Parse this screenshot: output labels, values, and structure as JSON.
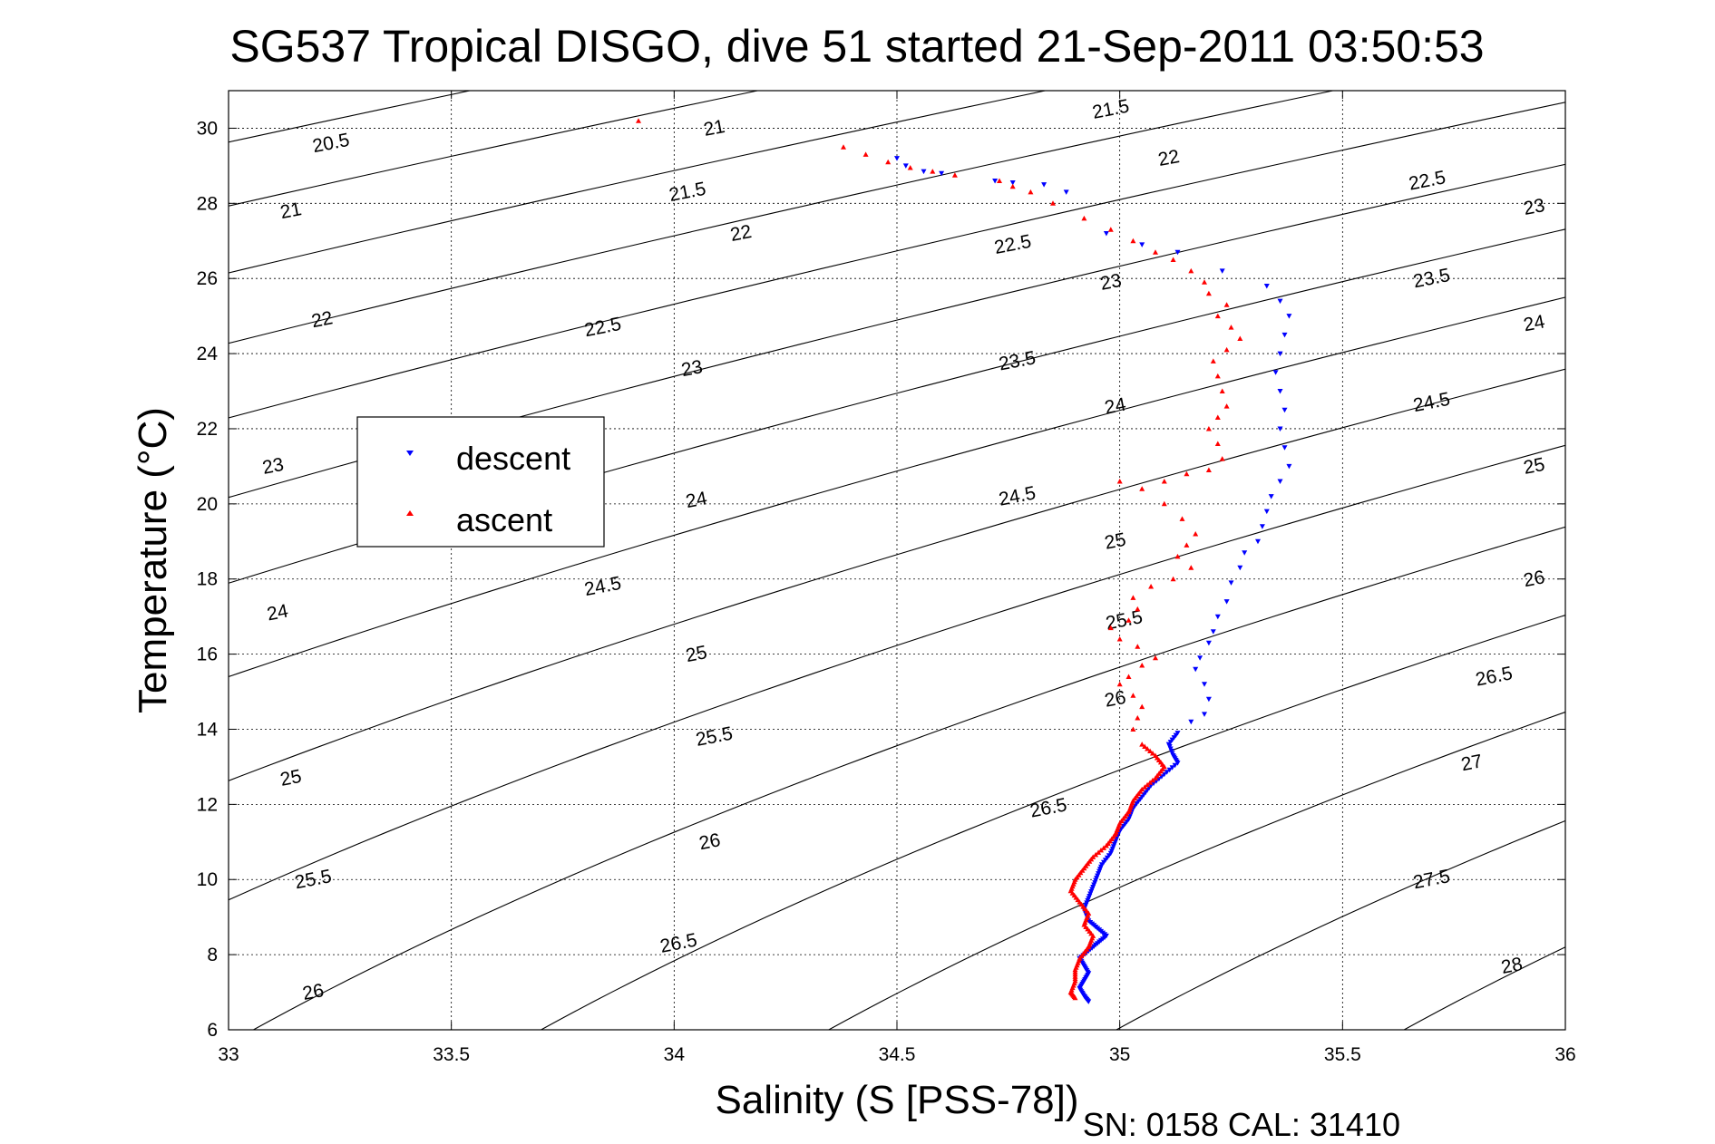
{
  "chart_data": {
    "type": "scatter",
    "title": "SG537 Tropical DISGO, dive 51 started 21-Sep-2011 03:50:53",
    "xlabel": "Salinity (S [PSS-78])",
    "ylabel": "Temperature (°C)",
    "footer": "SN: 0158  CAL: 31410",
    "xlim": [
      33,
      36
    ],
    "ylim": [
      6,
      31
    ],
    "xticks": [
      33,
      33.5,
      34,
      34.5,
      35,
      35.5,
      36
    ],
    "xtick_labels": [
      "33",
      "33.5",
      "34",
      "34.5",
      "35",
      "35.5",
      "36"
    ],
    "yticks": [
      6,
      8,
      10,
      12,
      14,
      16,
      18,
      20,
      22,
      24,
      26,
      28,
      30
    ],
    "ytick_labels": [
      "6",
      "8",
      "10",
      "12",
      "14",
      "16",
      "18",
      "20",
      "22",
      "24",
      "26",
      "28",
      "30"
    ],
    "grid": true,
    "legend_position": "center-left",
    "legend": [
      {
        "label": "descent",
        "color": "#0000ff",
        "marker": "triangle-down"
      },
      {
        "label": "ascent",
        "color": "#ff0000",
        "marker": "triangle-up"
      }
    ],
    "density_contours": {
      "color": "#000000",
      "levels": [
        20.5,
        21,
        21.5,
        22,
        22.5,
        23,
        23.5,
        24,
        24.5,
        25,
        25.5,
        26,
        26.5,
        27,
        27.5,
        28
      ],
      "level_labels": [
        "20.5",
        "21",
        "21.5",
        "22",
        "22.5",
        "23",
        "23.5",
        "24",
        "24.5",
        "25",
        "25.5",
        "26",
        "26.5",
        "27",
        "27.5",
        "28"
      ],
      "labels": [
        {
          "text": "20.5",
          "s": 33.23,
          "t": 29.6
        },
        {
          "text": "21",
          "s": 33.14,
          "t": 27.8
        },
        {
          "text": "22",
          "s": 33.21,
          "t": 24.9
        },
        {
          "text": "23",
          "s": 33.1,
          "t": 21.0
        },
        {
          "text": "24",
          "s": 33.11,
          "t": 17.1
        },
        {
          "text": "25",
          "s": 33.14,
          "t": 12.7
        },
        {
          "text": "25.5",
          "s": 33.19,
          "t": 10.0
        },
        {
          "text": "26",
          "s": 33.19,
          "t": 7.0
        },
        {
          "text": "21",
          "s": 34.09,
          "t": 30.0
        },
        {
          "text": "21.5",
          "s": 34.03,
          "t": 28.3
        },
        {
          "text": "22",
          "s": 34.15,
          "t": 27.2
        },
        {
          "text": "22.5",
          "s": 33.84,
          "t": 24.7
        },
        {
          "text": "23",
          "s": 34.04,
          "t": 23.6
        },
        {
          "text": "24",
          "s": 34.05,
          "t": 20.1
        },
        {
          "text": "24.5",
          "s": 33.84,
          "t": 17.8
        },
        {
          "text": "25",
          "s": 34.05,
          "t": 16.0
        },
        {
          "text": "25.5",
          "s": 34.09,
          "t": 13.8
        },
        {
          "text": "26",
          "s": 34.08,
          "t": 11.0
        },
        {
          "text": "26.5",
          "s": 34.01,
          "t": 8.3
        },
        {
          "text": "21.5",
          "s": 34.98,
          "t": 30.5
        },
        {
          "text": "22",
          "s": 35.11,
          "t": 29.2
        },
        {
          "text": "22.5",
          "s": 34.76,
          "t": 26.9
        },
        {
          "text": "23",
          "s": 34.98,
          "t": 25.9
        },
        {
          "text": "23.5",
          "s": 34.77,
          "t": 23.8
        },
        {
          "text": "24",
          "s": 34.99,
          "t": 22.6
        },
        {
          "text": "24.5",
          "s": 34.77,
          "t": 20.2
        },
        {
          "text": "25",
          "s": 34.99,
          "t": 19.0
        },
        {
          "text": "25.5",
          "s": 35.01,
          "t": 16.9
        },
        {
          "text": "26",
          "s": 34.99,
          "t": 14.8
        },
        {
          "text": "26.5",
          "s": 34.84,
          "t": 11.9
        },
        {
          "text": "22.5",
          "s": 35.69,
          "t": 28.6
        },
        {
          "text": "23",
          "s": 35.93,
          "t": 27.9
        },
        {
          "text": "23.5",
          "s": 35.7,
          "t": 26.0
        },
        {
          "text": "24",
          "s": 35.93,
          "t": 24.8
        },
        {
          "text": "24.5",
          "s": 35.7,
          "t": 22.7
        },
        {
          "text": "25",
          "s": 35.93,
          "t": 21.0
        },
        {
          "text": "26",
          "s": 35.93,
          "t": 18.0
        },
        {
          "text": "26.5",
          "s": 35.84,
          "t": 15.4
        },
        {
          "text": "27",
          "s": 35.79,
          "t": 13.1
        },
        {
          "text": "27.5",
          "s": 35.7,
          "t": 10.0
        },
        {
          "text": "28",
          "s": 35.88,
          "t": 7.7
        }
      ]
    },
    "series": [
      {
        "name": "descent",
        "color": "#0000ff",
        "marker": "triangle-down",
        "points": [
          [
            34.5,
            29.2
          ],
          [
            34.52,
            29.0
          ],
          [
            34.56,
            28.85
          ],
          [
            34.6,
            28.8
          ],
          [
            34.72,
            28.6
          ],
          [
            34.76,
            28.55
          ],
          [
            34.83,
            28.5
          ],
          [
            34.88,
            28.3
          ],
          [
            34.97,
            27.2
          ],
          [
            35.05,
            26.9
          ],
          [
            35.13,
            26.7
          ],
          [
            35.23,
            26.2
          ],
          [
            35.33,
            25.8
          ],
          [
            35.36,
            25.4
          ],
          [
            35.38,
            25.0
          ],
          [
            35.37,
            24.5
          ],
          [
            35.36,
            24.0
          ],
          [
            35.35,
            23.5
          ],
          [
            35.36,
            23.0
          ],
          [
            35.37,
            22.5
          ],
          [
            35.36,
            22.0
          ],
          [
            35.37,
            21.5
          ],
          [
            35.38,
            21.0
          ],
          [
            35.36,
            20.6
          ],
          [
            35.34,
            20.2
          ],
          [
            35.33,
            19.8
          ],
          [
            35.32,
            19.4
          ],
          [
            35.31,
            19.0
          ],
          [
            35.28,
            18.7
          ],
          [
            35.27,
            18.3
          ],
          [
            35.25,
            17.9
          ],
          [
            35.24,
            17.4
          ],
          [
            35.22,
            17.0
          ],
          [
            35.21,
            16.6
          ],
          [
            35.2,
            16.3
          ],
          [
            35.18,
            15.9
          ],
          [
            35.17,
            15.6
          ],
          [
            35.19,
            15.2
          ],
          [
            35.2,
            14.8
          ],
          [
            35.19,
            14.4
          ],
          [
            35.16,
            14.2
          ],
          [
            35.13,
            13.9
          ],
          [
            35.11,
            13.6
          ],
          [
            35.12,
            13.3
          ],
          [
            35.13,
            13.1
          ],
          [
            35.1,
            12.8
          ],
          [
            35.07,
            12.5
          ],
          [
            35.05,
            12.2
          ],
          [
            35.03,
            11.9
          ],
          [
            35.02,
            11.6
          ],
          [
            35.0,
            11.3
          ],
          [
            34.99,
            11.0
          ],
          [
            34.98,
            10.7
          ],
          [
            34.96,
            10.4
          ],
          [
            34.95,
            10.1
          ],
          [
            34.94,
            9.8
          ],
          [
            34.93,
            9.5
          ],
          [
            34.92,
            9.2
          ],
          [
            34.93,
            8.9
          ],
          [
            34.95,
            8.7
          ],
          [
            34.97,
            8.5
          ],
          [
            34.95,
            8.3
          ],
          [
            34.93,
            8.1
          ],
          [
            34.91,
            7.9
          ],
          [
            34.92,
            7.7
          ],
          [
            34.93,
            7.5
          ],
          [
            34.92,
            7.3
          ],
          [
            34.91,
            7.1
          ],
          [
            34.92,
            6.9
          ],
          [
            34.93,
            6.75
          ]
        ]
      },
      {
        "name": "ascent",
        "color": "#ff0000",
        "marker": "triangle-up",
        "points": [
          [
            33.92,
            30.2
          ],
          [
            34.38,
            29.5
          ],
          [
            34.43,
            29.3
          ],
          [
            34.48,
            29.1
          ],
          [
            34.53,
            28.95
          ],
          [
            34.58,
            28.85
          ],
          [
            34.63,
            28.75
          ],
          [
            34.73,
            28.6
          ],
          [
            34.76,
            28.45
          ],
          [
            34.8,
            28.3
          ],
          [
            34.85,
            28.0
          ],
          [
            34.92,
            27.6
          ],
          [
            34.98,
            27.3
          ],
          [
            35.03,
            27.0
          ],
          [
            35.08,
            26.7
          ],
          [
            35.12,
            26.5
          ],
          [
            35.16,
            26.2
          ],
          [
            35.19,
            25.9
          ],
          [
            35.2,
            25.6
          ],
          [
            35.24,
            25.3
          ],
          [
            35.22,
            25.0
          ],
          [
            35.25,
            24.7
          ],
          [
            35.27,
            24.4
          ],
          [
            35.24,
            24.1
          ],
          [
            35.21,
            23.8
          ],
          [
            35.22,
            23.4
          ],
          [
            35.23,
            23.0
          ],
          [
            35.24,
            22.6
          ],
          [
            35.22,
            22.3
          ],
          [
            35.2,
            22.0
          ],
          [
            35.22,
            21.6
          ],
          [
            35.23,
            21.2
          ],
          [
            35.2,
            20.9
          ],
          [
            35.15,
            20.8
          ],
          [
            35.1,
            20.6
          ],
          [
            35.05,
            20.4
          ],
          [
            35.0,
            20.6
          ],
          [
            35.1,
            20.0
          ],
          [
            35.14,
            19.6
          ],
          [
            35.17,
            19.2
          ],
          [
            35.15,
            18.9
          ],
          [
            35.13,
            18.6
          ],
          [
            35.16,
            18.3
          ],
          [
            35.12,
            18.0
          ],
          [
            35.07,
            17.8
          ],
          [
            35.03,
            17.5
          ],
          [
            35.04,
            17.2
          ],
          [
            35.02,
            16.9
          ],
          [
            34.98,
            16.7
          ],
          [
            35.0,
            16.4
          ],
          [
            35.04,
            16.2
          ],
          [
            35.08,
            15.9
          ],
          [
            35.05,
            15.7
          ],
          [
            35.02,
            15.4
          ],
          [
            35.0,
            15.2
          ],
          [
            35.03,
            14.9
          ],
          [
            35.05,
            14.6
          ],
          [
            35.04,
            14.3
          ],
          [
            35.03,
            14.0
          ],
          [
            35.05,
            13.6
          ],
          [
            35.08,
            13.3
          ],
          [
            35.1,
            13.0
          ],
          [
            35.08,
            12.7
          ],
          [
            35.05,
            12.4
          ],
          [
            35.03,
            12.1
          ],
          [
            35.02,
            11.8
          ],
          [
            35.0,
            11.5
          ],
          [
            34.99,
            11.2
          ],
          [
            34.97,
            10.9
          ],
          [
            34.94,
            10.6
          ],
          [
            34.92,
            10.3
          ],
          [
            34.9,
            10.0
          ],
          [
            34.89,
            9.7
          ],
          [
            34.91,
            9.4
          ],
          [
            34.93,
            9.1
          ],
          [
            34.92,
            8.8
          ],
          [
            34.94,
            8.5
          ],
          [
            34.93,
            8.2
          ],
          [
            34.91,
            7.9
          ],
          [
            34.9,
            7.6
          ],
          [
            34.9,
            7.3
          ],
          [
            34.89,
            7.0
          ],
          [
            34.9,
            6.85
          ]
        ]
      }
    ]
  }
}
